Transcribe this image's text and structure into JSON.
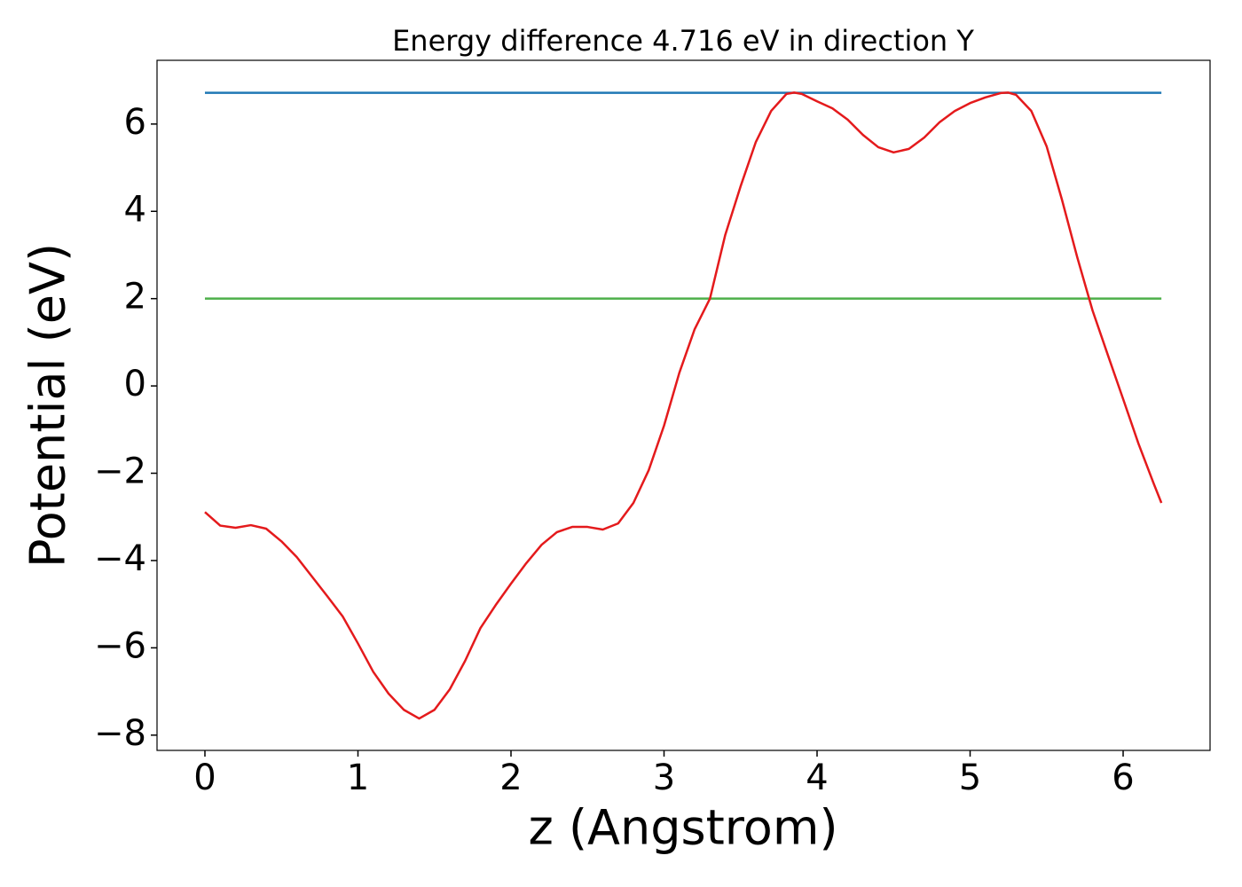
{
  "chart_data": {
    "type": "line",
    "title": "Energy difference 4.716 eV in direction Y",
    "xlabel": "z (Angstrom)",
    "ylabel": "Potential (eV)",
    "xlim": [
      -0.313,
      6.568
    ],
    "ylim": [
      -8.35,
      7.46
    ],
    "xticks": [
      0,
      1,
      2,
      3,
      4,
      5,
      6
    ],
    "yticks": [
      {
        "value": -8,
        "label": "−8"
      },
      {
        "value": -6,
        "label": "−6"
      },
      {
        "value": -4,
        "label": "−4"
      },
      {
        "value": -2,
        "label": "−2"
      },
      0,
      2,
      4,
      6
    ],
    "grid": false,
    "series": [
      {
        "color": "#1f77b4",
        "x": [
          0,
          6.25
        ],
        "values": [
          6.716,
          6.716
        ]
      },
      {
        "color": "#4daf4a",
        "x": [
          0,
          6.25
        ],
        "values": [
          2.0,
          2.0
        ]
      },
      {
        "color": "#e41a1c",
        "x": [
          0,
          0.1,
          0.2,
          0.3,
          0.4,
          0.5,
          0.6,
          0.7,
          0.8,
          0.9,
          1.0,
          1.1,
          1.2,
          1.3,
          1.4,
          1.5,
          1.6,
          1.7,
          1.8,
          1.9,
          2.0,
          2.1,
          2.2,
          2.3,
          2.4,
          2.5,
          2.6,
          2.7,
          2.8,
          2.9,
          3.0,
          3.1,
          3.2,
          3.3,
          3.4,
          3.5,
          3.6,
          3.7,
          3.8,
          3.85,
          3.9,
          4.0,
          4.1,
          4.2,
          4.3,
          4.4,
          4.5,
          4.6,
          4.7,
          4.8,
          4.9,
          5.0,
          5.1,
          5.2,
          5.25,
          5.3,
          5.4,
          5.5,
          5.6,
          5.7,
          5.8,
          5.9,
          6.0,
          6.1,
          6.2,
          6.25
        ],
        "values": [
          -2.89,
          -3.2,
          -3.25,
          -3.19,
          -3.27,
          -3.56,
          -3.92,
          -4.37,
          -4.82,
          -5.28,
          -5.9,
          -6.55,
          -7.05,
          -7.42,
          -7.62,
          -7.42,
          -6.95,
          -6.3,
          -5.55,
          -5.02,
          -4.53,
          -4.06,
          -3.64,
          -3.35,
          -3.23,
          -3.23,
          -3.29,
          -3.15,
          -2.68,
          -1.93,
          -0.91,
          0.3,
          1.3,
          2.0,
          3.46,
          4.57,
          5.59,
          6.3,
          6.69,
          6.72,
          6.69,
          6.52,
          6.36,
          6.1,
          5.75,
          5.47,
          5.35,
          5.43,
          5.69,
          6.04,
          6.3,
          6.48,
          6.61,
          6.71,
          6.72,
          6.67,
          6.3,
          5.49,
          4.27,
          2.95,
          1.73,
          0.71,
          -0.3,
          -1.32,
          -2.24,
          -2.68
        ]
      }
    ]
  }
}
